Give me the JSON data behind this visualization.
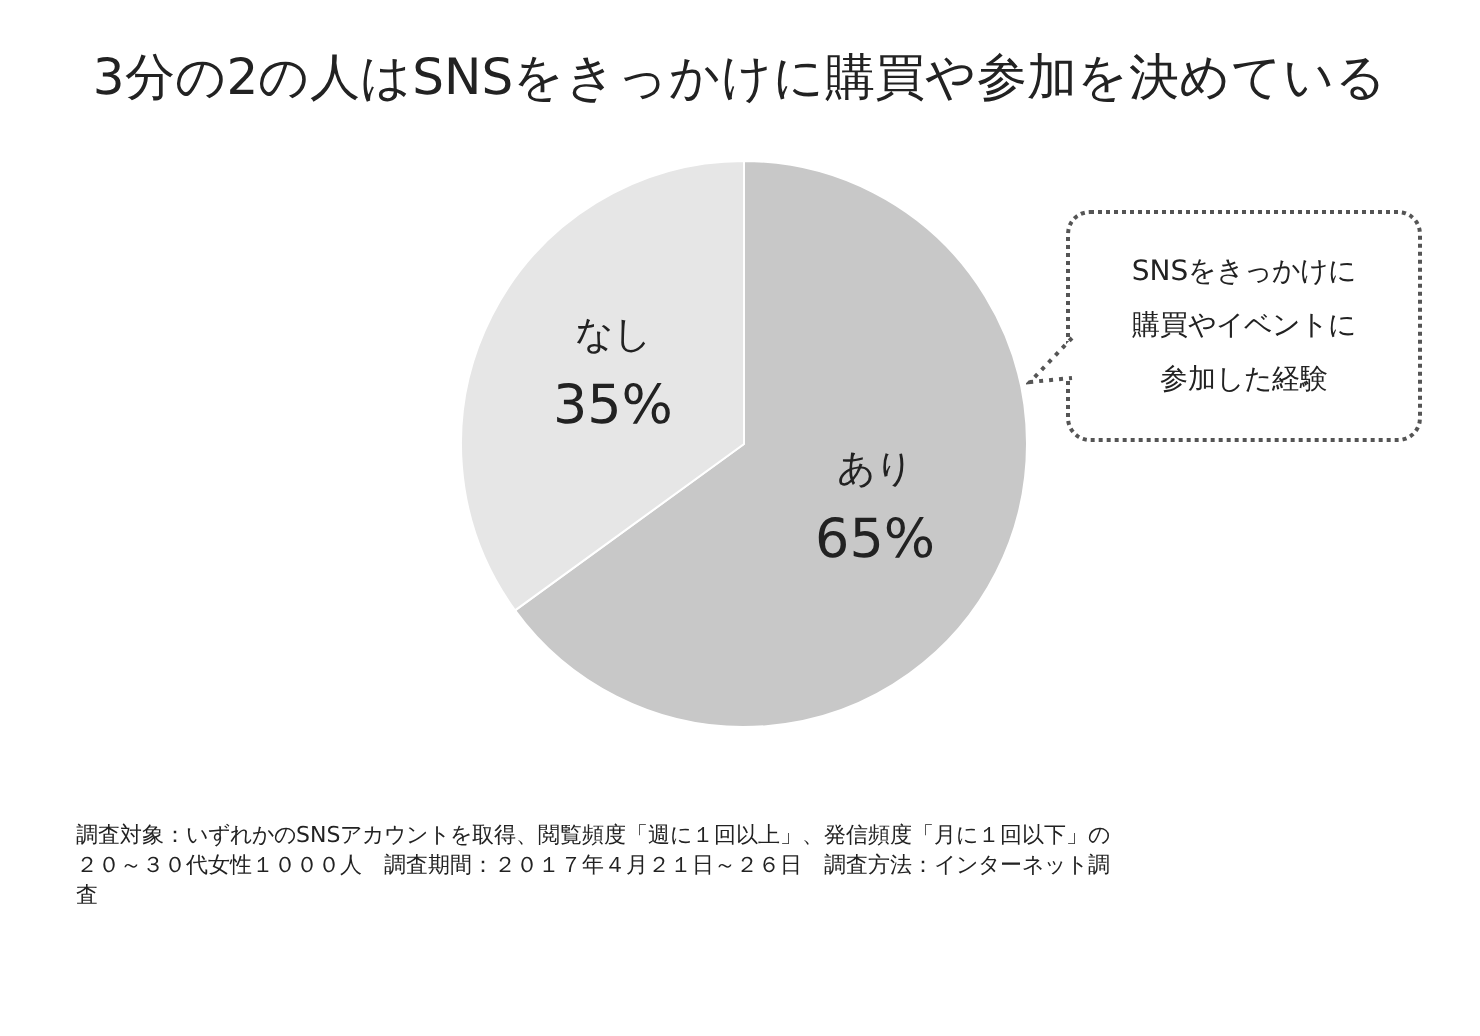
{
  "chart_data": {
    "type": "pie",
    "title": "3分の2の人はSNSをきっかけに購買や参加を決めている",
    "categories": [
      "あり",
      "なし"
    ],
    "values": [
      65,
      35
    ],
    "value_labels": [
      "65%",
      "35%"
    ],
    "colors": [
      "#c8c8c8",
      "#e6e6e6"
    ],
    "legend": false,
    "annotations": [
      "SNSをきっかけに購買やイベントに参加した経験",
      "調査対象：いずれかのSNSアカウントを取得、閲覧頻度「週に１回以上」、発信頻度「月に１回以下」の２０～３０代女性１０００人　調査期間：２０１７年４月２１日～２６日　調査方法：インターネット調査"
    ]
  }
}
